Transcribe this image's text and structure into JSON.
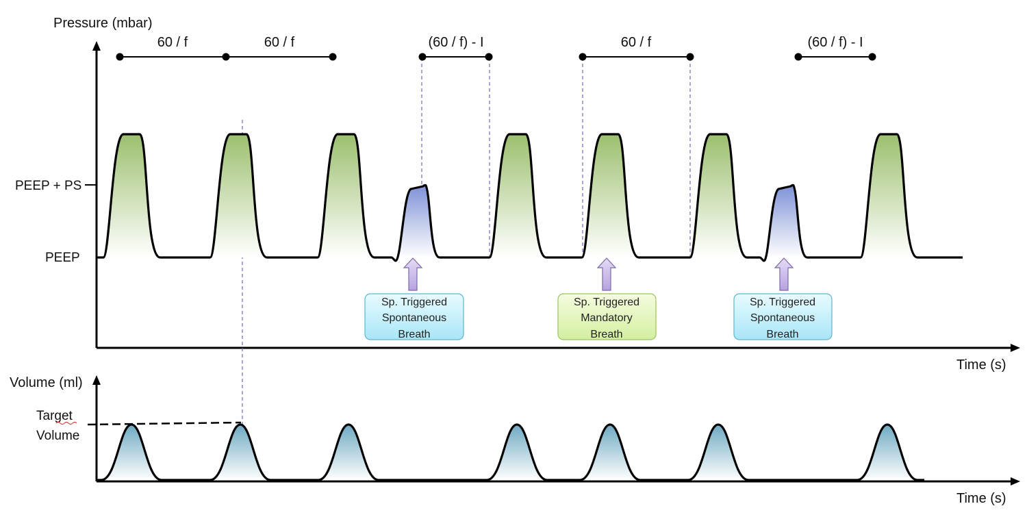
{
  "pressure_axis": {
    "title": "Pressure (mbar)",
    "x_label": "Time (s)",
    "levels": [
      "PEEP + PS",
      "PEEP"
    ]
  },
  "volume_axis": {
    "title": "Volume (ml)",
    "x_label": "Time (s)",
    "target_line1": "Target",
    "target_line2": "Volume"
  },
  "intervals": [
    {
      "label": "60 / f"
    },
    {
      "label": "60 / f"
    },
    {
      "label": "(60 / f) - I"
    },
    {
      "label": "60 / f"
    },
    {
      "label": "(60 / f) - I"
    }
  ],
  "annotations": [
    {
      "lines": [
        "Sp. Triggered",
        "Spontaneous",
        "Breath"
      ],
      "kind": "spontaneous"
    },
    {
      "lines": [
        "Sp. Triggered",
        "Mandatory",
        "Breath"
      ],
      "kind": "mandatory"
    },
    {
      "lines": [
        "Sp. Triggered",
        "Spontaneous",
        "Breath"
      ],
      "kind": "spontaneous"
    }
  ],
  "colors": {
    "mandatory_fill": "#a9c77f",
    "spontaneous_fill": "#8b9fd8",
    "volume_fill": "#7fb3c8",
    "box_spontaneous": "#bfeefa",
    "box_mandatory": "#e4f5b8",
    "arrow": "#c9b8e8"
  }
}
